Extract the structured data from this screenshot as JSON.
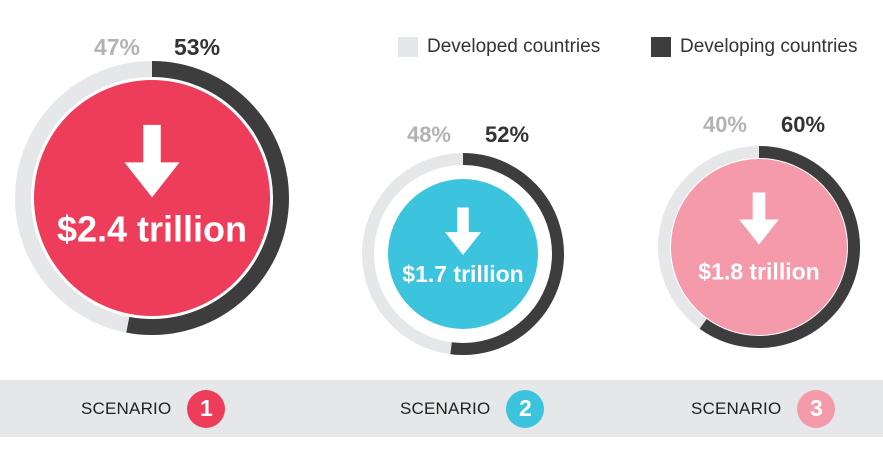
{
  "legend": [
    {
      "label": "Developed countries",
      "color": "#e6e7e8"
    },
    {
      "label": "Developing countries",
      "color": "#3d3d3d"
    }
  ],
  "scenarios": [
    {
      "label": "SCENARIO",
      "number": "1",
      "color": "#ee3d5b"
    },
    {
      "label": "SCENARIO",
      "number": "2",
      "color": "#3cc3dd"
    },
    {
      "label": "SCENARIO",
      "number": "3",
      "color": "#f49aab"
    }
  ],
  "chart_data": [
    {
      "type": "pie",
      "title": "$2.4 trillion",
      "slices": [
        {
          "name": "Developed countries",
          "percent": 47,
          "label": "47%"
        },
        {
          "name": "Developing countries",
          "percent": 53,
          "label": "53%"
        }
      ]
    },
    {
      "type": "pie",
      "title": "$1.7 trillion",
      "slices": [
        {
          "name": "Developed countries",
          "percent": 48,
          "label": "48%"
        },
        {
          "name": "Developing countries",
          "percent": 52,
          "label": "52%"
        }
      ]
    },
    {
      "type": "pie",
      "title": "$1.8 trillion",
      "slices": [
        {
          "name": "Developed countries",
          "percent": 40,
          "label": "40%"
        },
        {
          "name": "Developing countries",
          "percent": 60,
          "label": "60%"
        }
      ]
    }
  ]
}
